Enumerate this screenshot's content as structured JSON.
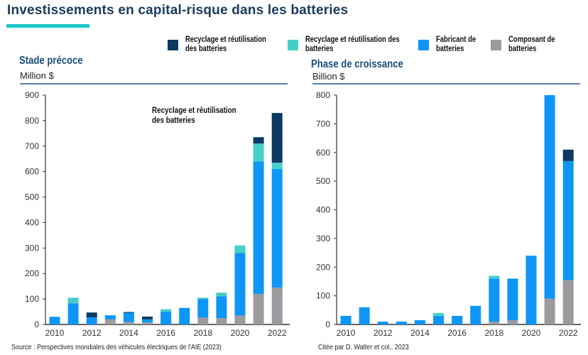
{
  "header": {
    "title": "Investissements en capital-risque dans les batteries"
  },
  "colors": {
    "recyclage_navy": "#0d3a63",
    "recyclage_teal": "#45cfc8",
    "fabricant": "#0d96f5",
    "composant": "#9b9a9f",
    "axis": "#333333",
    "title": "#1b3a5c",
    "accent_bar": "#1ec8c8"
  },
  "legend": [
    {
      "label_line1": "Recyclage et réutilisation",
      "label_line2": "des batteries",
      "color": "#0d3a63"
    },
    {
      "label_line1": "Recyclage et réutilisation des",
      "label_line2": "batteries",
      "color": "#45cfc8"
    },
    {
      "label_line1": "Fabricant de",
      "label_line2": "batteries",
      "color": "#0d96f5"
    },
    {
      "label_line1": "Composant de",
      "label_line2": "batteries",
      "color": "#9b9a9f"
    }
  ],
  "footer": {
    "source": "Source : Perspectives mondiales des véhicules électriques de l'AIE (2023)",
    "citation": "Citée par D. Walter et col., 2023"
  },
  "chart_data": [
    {
      "type": "bar",
      "stacked": true,
      "title": "Stade précoce",
      "ylabel": "Million $",
      "xlabel": "",
      "annotation_line1": "Recyclage et réutilisation",
      "annotation_line2": "des batteries",
      "ylim": [
        0,
        900
      ],
      "yticks": [
        0,
        100,
        200,
        300,
        400,
        500,
        600,
        700,
        800,
        900
      ],
      "categories": [
        "2010",
        "2011",
        "2012",
        "2013",
        "2014",
        "2015",
        "2016",
        "2017",
        "2018",
        "2019",
        "2020",
        "2021",
        "2022"
      ],
      "xtick_labels": [
        "2010",
        "2012",
        "2014",
        "2016",
        "2018",
        "2020",
        "2022"
      ],
      "grid": false,
      "series": [
        {
          "name": "Composant de batteries",
          "color": "#9b9a9f",
          "values": [
            0,
            0,
            0,
            20,
            10,
            8,
            0,
            0,
            27,
            25,
            35,
            120,
            145
          ]
        },
        {
          "name": "Fabricant de batteries",
          "color": "#0d96f5",
          "values": [
            30,
            83,
            28,
            16,
            36,
            12,
            50,
            65,
            73,
            85,
            245,
            520,
            465
          ]
        },
        {
          "name": "Recyclage et réutilisation des batteries (turquoise)",
          "color": "#45cfc8",
          "values": [
            0,
            22,
            0,
            0,
            0,
            0,
            10,
            0,
            5,
            15,
            30,
            70,
            25
          ]
        },
        {
          "name": "Recyclage et réutilisation des batteries (bleu marine)",
          "color": "#0d3a63",
          "values": [
            0,
            0,
            19,
            0,
            3,
            11,
            0,
            0,
            0,
            0,
            0,
            25,
            195
          ]
        }
      ]
    },
    {
      "type": "bar",
      "stacked": true,
      "title": "Phase de croissance",
      "ylabel": "Billion $",
      "xlabel": "",
      "ylim": [
        0,
        800
      ],
      "yticks": [
        0,
        100,
        200,
        300,
        400,
        500,
        600,
        700,
        800
      ],
      "categories": [
        "2010",
        "2011",
        "2012",
        "2013",
        "2014",
        "2015",
        "2016",
        "2017",
        "2018",
        "2019",
        "2020",
        "2021",
        "2022"
      ],
      "xtick_labels": [
        "2010",
        "2012",
        "2014",
        "2016",
        "2018",
        "2020",
        "2022"
      ],
      "grid": false,
      "series": [
        {
          "name": "Composant de batteries",
          "color": "#9b9a9f",
          "values": [
            0,
            0,
            0,
            0,
            0,
            0,
            0,
            0,
            10,
            15,
            0,
            90,
            155
          ]
        },
        {
          "name": "Fabricant de batteries",
          "color": "#0d96f5",
          "values": [
            30,
            60,
            10,
            10,
            15,
            30,
            30,
            65,
            150,
            145,
            240,
            710,
            415
          ]
        },
        {
          "name": "Recyclage et réutilisation des batteries (turquoise)",
          "color": "#45cfc8",
          "values": [
            0,
            0,
            0,
            0,
            0,
            10,
            0,
            0,
            10,
            0,
            0,
            0,
            0
          ]
        },
        {
          "name": "Recyclage et réutilisation des batteries (bleu marine)",
          "color": "#0d3a63",
          "values": [
            0,
            0,
            0,
            0,
            0,
            0,
            0,
            0,
            0,
            0,
            0,
            0,
            40
          ]
        }
      ]
    }
  ]
}
